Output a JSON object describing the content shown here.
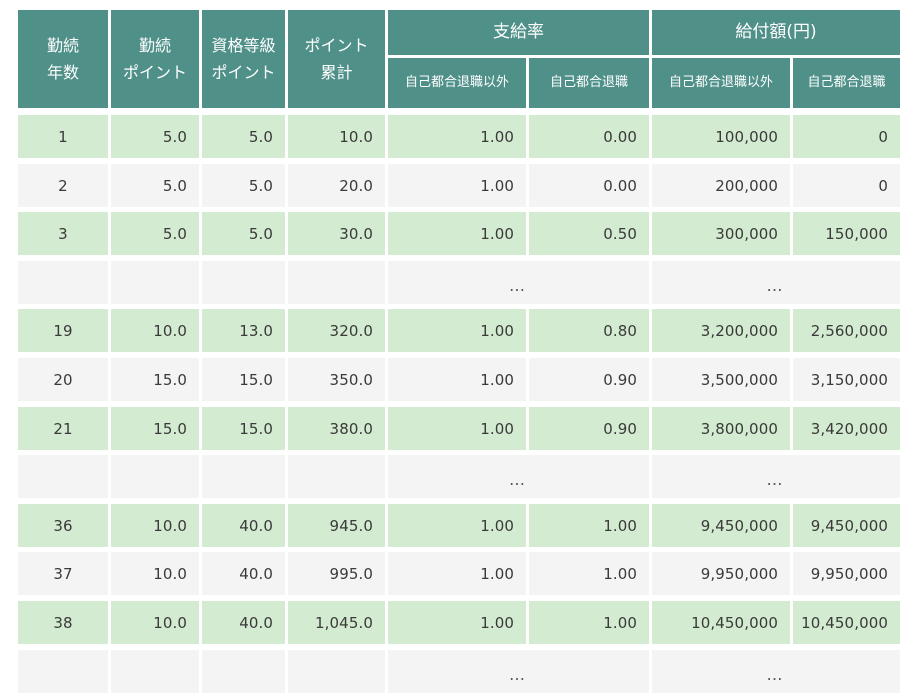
{
  "headers": {
    "years": "勤続\n年数",
    "tenure_points": "勤続\nポイント",
    "grade_points": "資格等級\nポイント",
    "cumulative_points": "ポイント\n累計",
    "payment_rate": "支給率",
    "benefit_amount": "給付額(円)",
    "sub_other_than_voluntary": "自己都合退職以外",
    "sub_voluntary": "自己都合退職"
  },
  "ellipsis": "…",
  "rows": [
    {
      "type": "data",
      "cells": [
        "1",
        "5.0",
        "5.0",
        "10.0",
        "1.00",
        "0.00",
        "100,000",
        "0"
      ]
    },
    {
      "type": "data",
      "cells": [
        "2",
        "5.0",
        "5.0",
        "20.0",
        "1.00",
        "0.00",
        "200,000",
        "0"
      ]
    },
    {
      "type": "data",
      "cells": [
        "3",
        "5.0",
        "5.0",
        "30.0",
        "1.00",
        "0.50",
        "300,000",
        "150,000"
      ]
    },
    {
      "type": "ellipsis"
    },
    {
      "type": "data",
      "cells": [
        "19",
        "10.0",
        "13.0",
        "320.0",
        "1.00",
        "0.80",
        "3,200,000",
        "2,560,000"
      ]
    },
    {
      "type": "data",
      "cells": [
        "20",
        "15.0",
        "15.0",
        "350.0",
        "1.00",
        "0.90",
        "3,500,000",
        "3,150,000"
      ]
    },
    {
      "type": "data",
      "cells": [
        "21",
        "15.0",
        "15.0",
        "380.0",
        "1.00",
        "0.90",
        "3,800,000",
        "3,420,000"
      ]
    },
    {
      "type": "ellipsis"
    },
    {
      "type": "data",
      "cells": [
        "36",
        "10.0",
        "40.0",
        "945.0",
        "1.00",
        "1.00",
        "9,450,000",
        "9,450,000"
      ]
    },
    {
      "type": "data",
      "cells": [
        "37",
        "10.0",
        "40.0",
        "995.0",
        "1.00",
        "1.00",
        "9,950,000",
        "9,950,000"
      ]
    },
    {
      "type": "data",
      "cells": [
        "38",
        "10.0",
        "40.0",
        "1,045.0",
        "1.00",
        "1.00",
        "10,450,000",
        "10,450,000"
      ]
    },
    {
      "type": "ellipsis"
    }
  ],
  "colors": {
    "header_bg": "#4f9088",
    "header_text": "#ffffff",
    "row_green": "#d3ebd0",
    "row_gray": "#f4f4f4",
    "body_text": "#3a3a3a"
  }
}
